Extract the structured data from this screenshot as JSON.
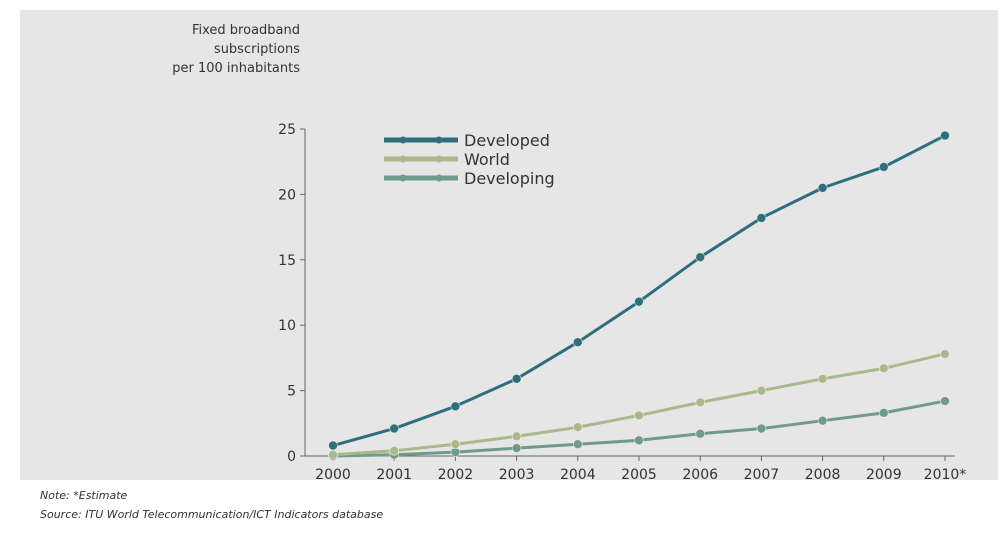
{
  "chart_data": {
    "type": "line",
    "ylabel": [
      "Fixed broadband",
      "subscriptions",
      "per 100 inhabitants"
    ],
    "xlabel": "",
    "categories": [
      "2000",
      "2001",
      "2002",
      "2003",
      "2004",
      "2005",
      "2006",
      "2007",
      "2008",
      "2009",
      "2010*"
    ],
    "ylim": [
      0,
      25
    ],
    "yticks": [
      "0",
      "5",
      "10",
      "15",
      "20",
      "25"
    ],
    "grid": false,
    "legend_position": "top-left",
    "series": [
      {
        "name": "Developed",
        "color": "#2f6f7d",
        "values": [
          0.8,
          2.1,
          3.8,
          5.9,
          8.7,
          11.8,
          15.2,
          18.2,
          20.5,
          22.1,
          24.5
        ]
      },
      {
        "name": "World",
        "color": "#a9b98c",
        "values": [
          0.1,
          0.4,
          0.9,
          1.5,
          2.2,
          3.1,
          4.1,
          5.0,
          5.9,
          6.7,
          7.8
        ]
      },
      {
        "name": "Developing",
        "color": "#6f9a8d",
        "values": [
          0.0,
          0.1,
          0.3,
          0.6,
          0.9,
          1.2,
          1.7,
          2.1,
          2.7,
          3.3,
          4.2
        ]
      }
    ]
  },
  "note": "Note: *Estimate",
  "source": "Source: ITU World Telecommunication/ICT Indicators database"
}
